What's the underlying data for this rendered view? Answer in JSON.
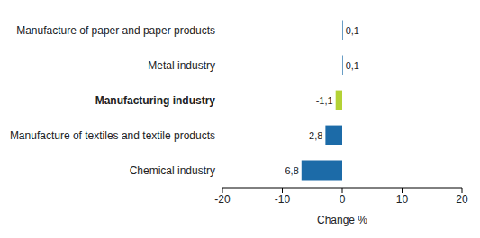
{
  "chart_data": {
    "type": "bar",
    "orientation": "horizontal",
    "categories": [
      "Manufacture of paper and paper products",
      "Metal industry",
      "Manufacturing industry",
      "Manufacture of textiles and textile products",
      "Chemical industry"
    ],
    "values": [
      0.1,
      0.1,
      -1.1,
      -2.8,
      -6.8
    ],
    "value_labels": [
      "0,1",
      "0,1",
      "-1,1",
      "-2,8",
      "-6,8"
    ],
    "colors": [
      "#1c6ba8",
      "#1c6ba8",
      "#b4d235",
      "#1c6ba8",
      "#1c6ba8"
    ],
    "xlim": [
      -20,
      20
    ],
    "xticks": [
      -20,
      -10,
      0,
      10,
      20
    ],
    "xlabel": "Change %",
    "data_labels": true,
    "grid": false
  }
}
